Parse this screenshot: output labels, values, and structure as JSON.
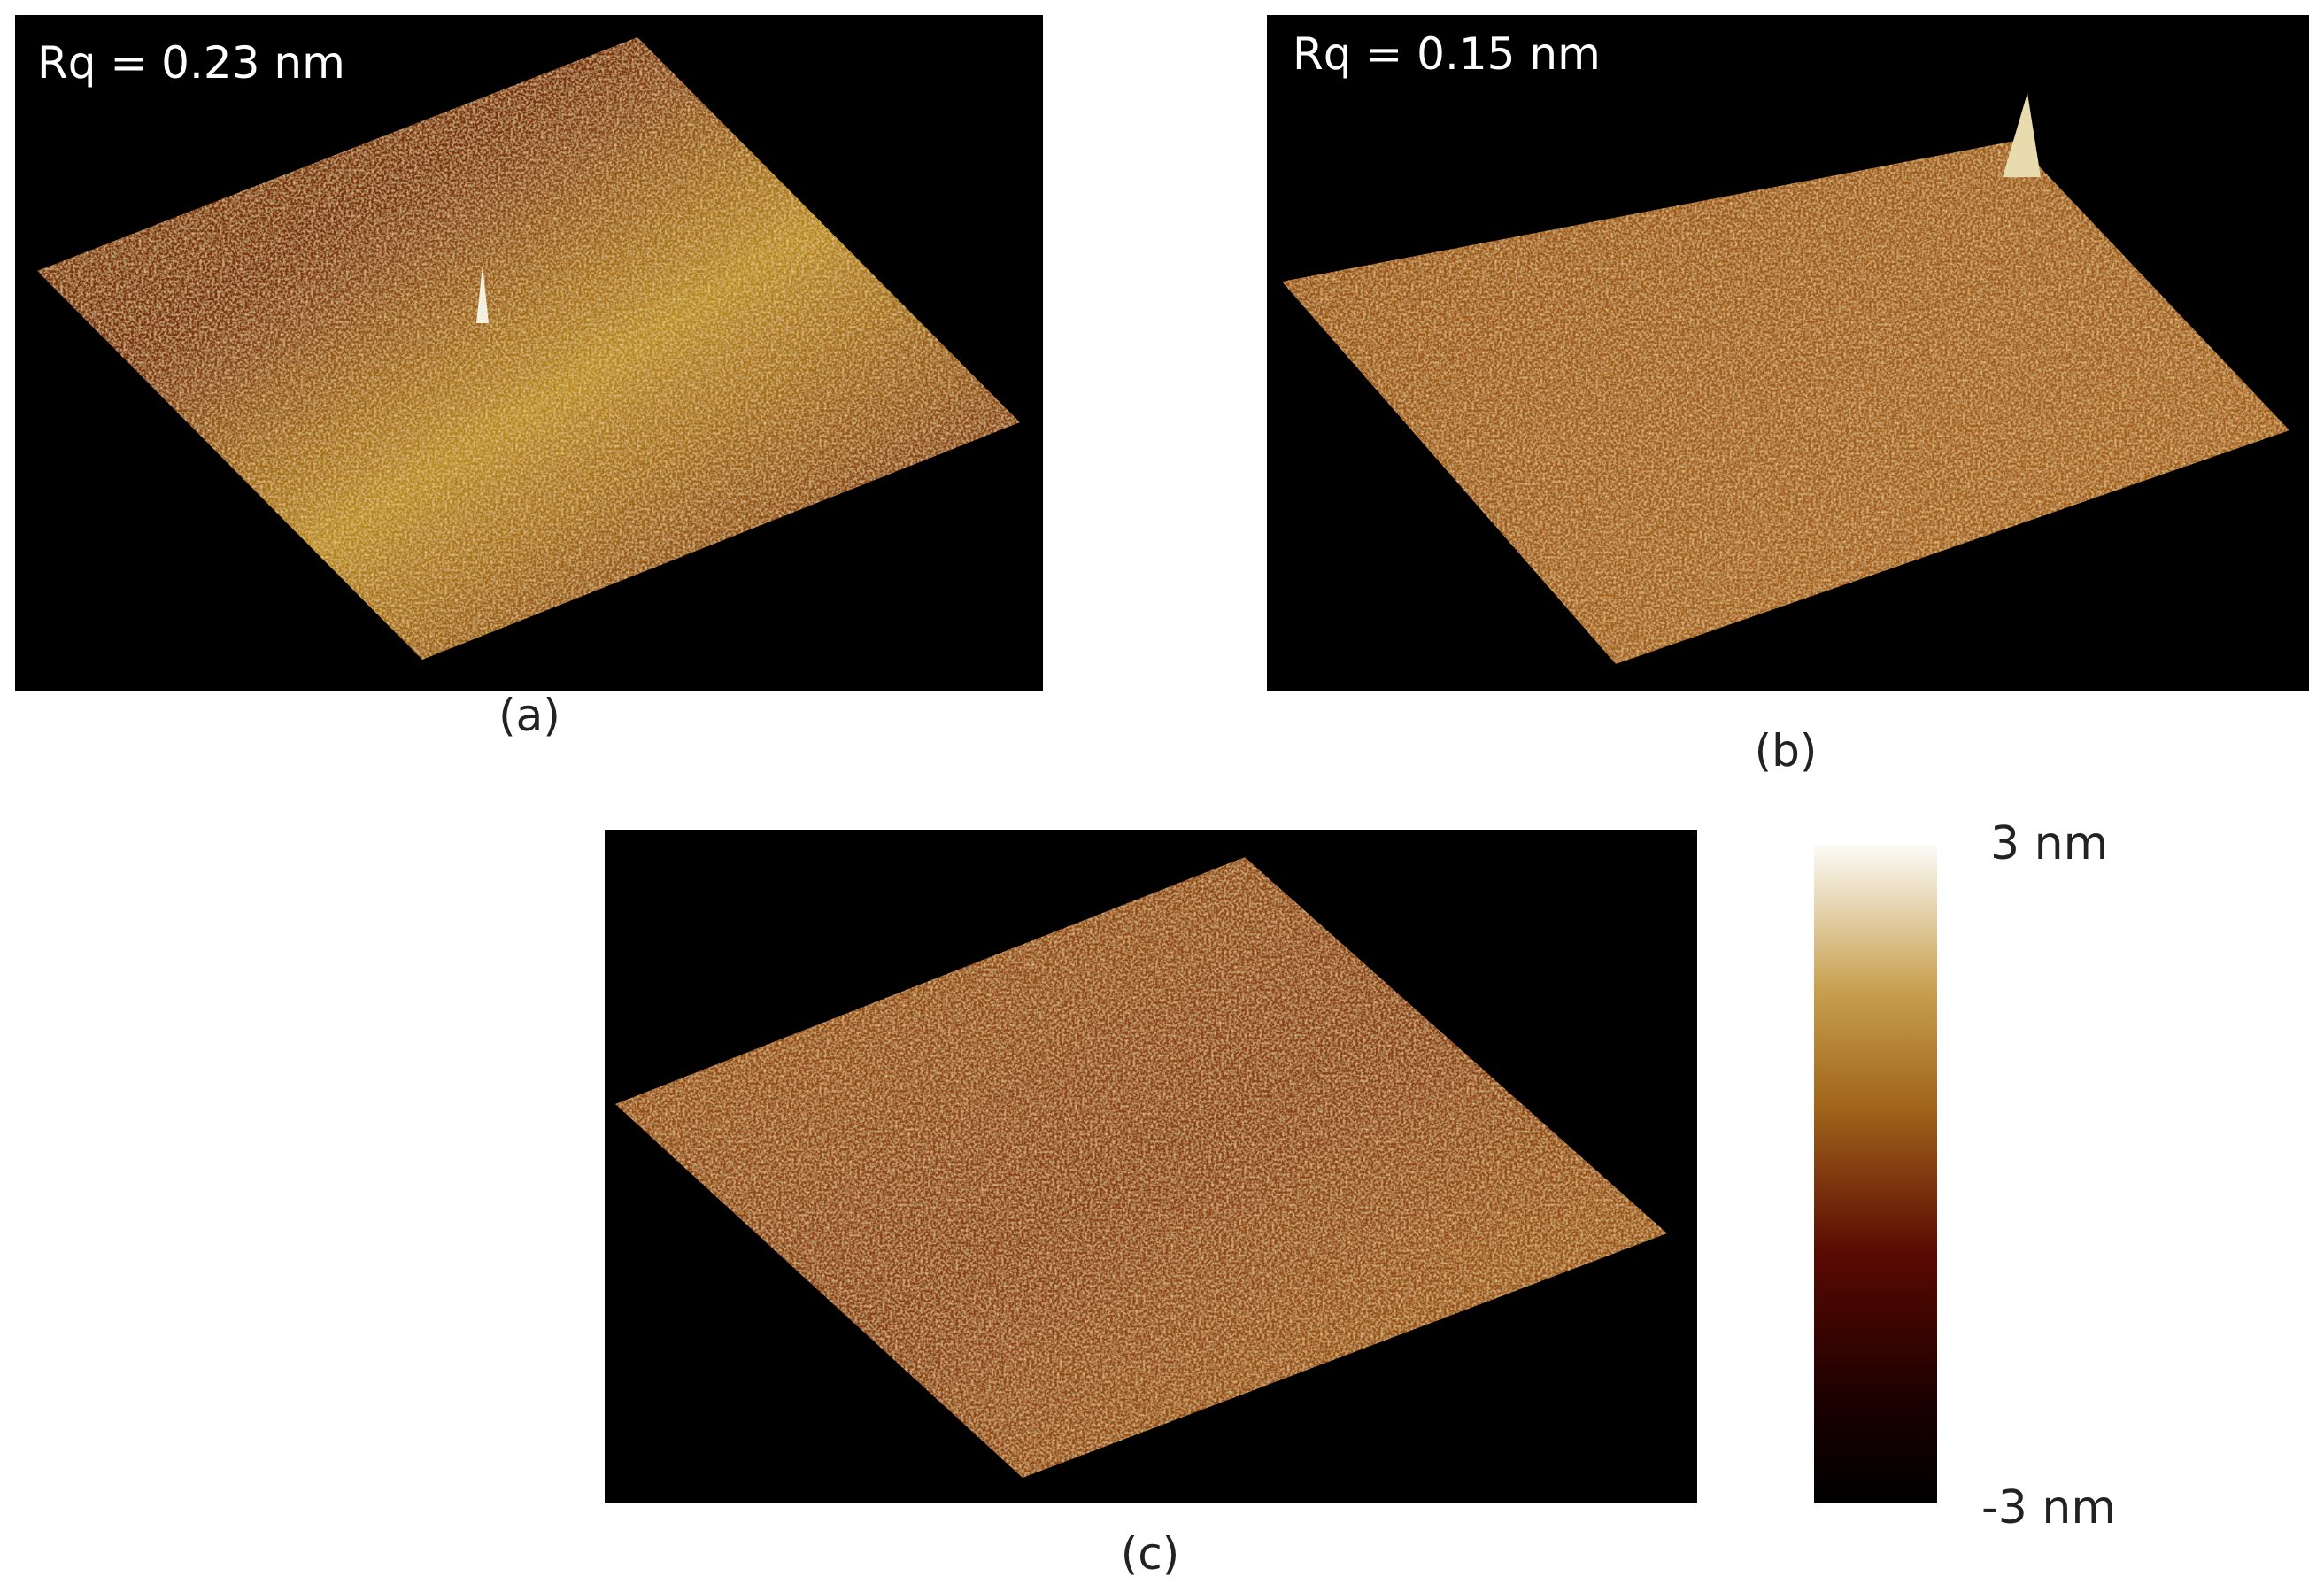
{
  "panels": [
    {
      "label": "(a)",
      "annotation": "Rq = 0.23 nm"
    },
    {
      "label": "(b)",
      "annotation": "Rq = 0.15 nm"
    },
    {
      "label": "(c)"
    }
  ],
  "colorbar": {
    "max_label": "3 nm",
    "min_label": "-3 nm"
  }
}
